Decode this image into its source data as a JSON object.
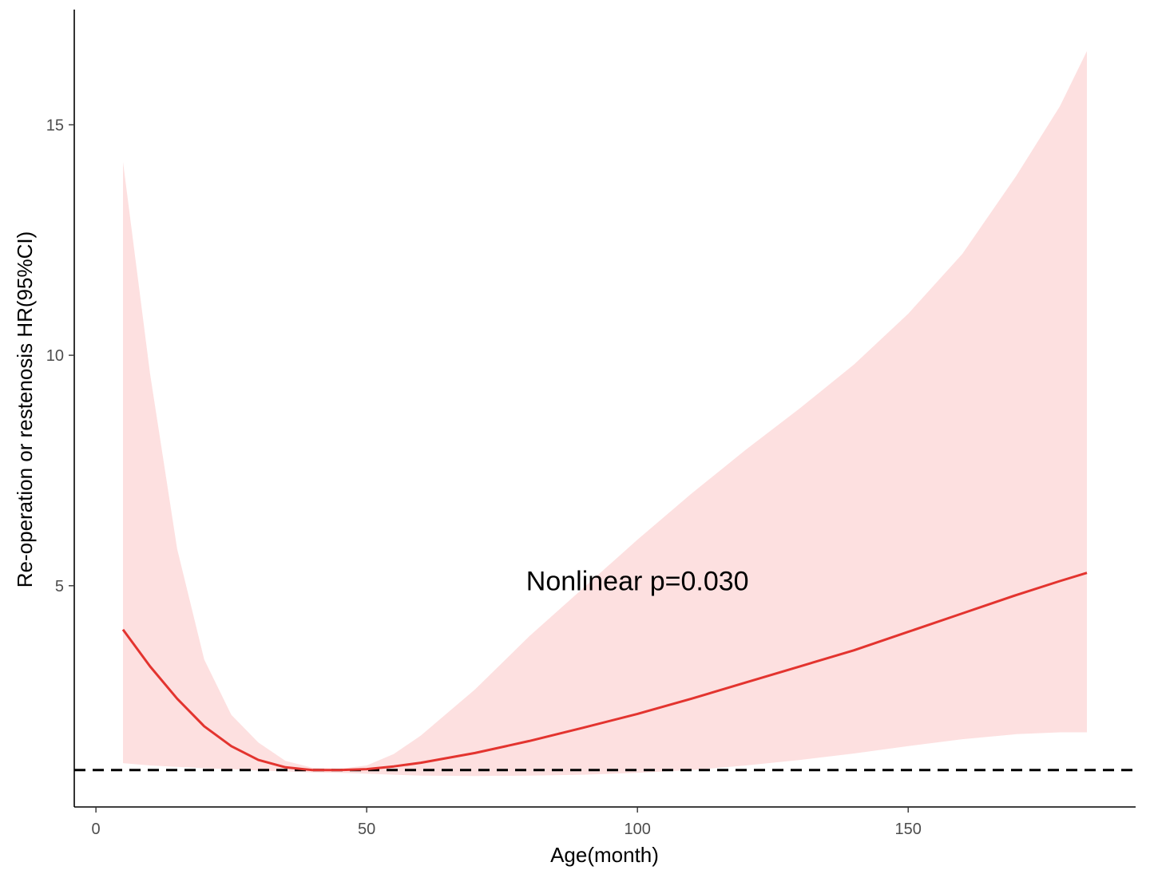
{
  "chart_data": {
    "type": "line",
    "title": "",
    "xlabel": "Age(month)",
    "ylabel": "Re-operation or restenosis HR(95%CI)",
    "xlim": [
      -4,
      192
    ],
    "ylim": [
      0.2,
      17.5
    ],
    "x_ticks": [
      0,
      50,
      100,
      150
    ],
    "x_tick_labels": [
      "0",
      "50",
      "100",
      "150"
    ],
    "y_ticks": [
      5,
      10,
      15
    ],
    "y_tick_labels": [
      "5",
      "10",
      "15"
    ],
    "reference_line": {
      "y": 1,
      "style": "dashed",
      "color": "#000000"
    },
    "annotation": {
      "text": "Nonlinear p=0.030",
      "x": 100,
      "y": 4.9
    },
    "grid": false,
    "series": [
      {
        "color": "#e3342f",
        "band_color": "#fde0e0",
        "x": [
          5,
          10,
          15,
          20,
          25,
          30,
          35,
          40,
          45,
          50,
          55,
          60,
          70,
          80,
          90,
          100,
          110,
          120,
          130,
          140,
          150,
          160,
          170,
          178,
          183
        ],
        "y": [
          4.05,
          3.25,
          2.55,
          1.95,
          1.52,
          1.22,
          1.06,
          1.0,
          1.0,
          1.02,
          1.08,
          1.16,
          1.37,
          1.63,
          1.92,
          2.22,
          2.55,
          2.9,
          3.25,
          3.6,
          4.0,
          4.4,
          4.8,
          5.1,
          5.28
        ],
        "upper": [
          14.2,
          9.6,
          5.8,
          3.4,
          2.2,
          1.6,
          1.2,
          1.05,
          1.03,
          1.1,
          1.35,
          1.75,
          2.75,
          3.9,
          4.95,
          6.0,
          7.0,
          7.95,
          8.85,
          9.8,
          10.9,
          12.2,
          13.9,
          15.4,
          16.6
        ],
        "lower": [
          1.15,
          1.1,
          1.07,
          1.04,
          1.02,
          0.99,
          0.97,
          0.95,
          0.94,
          0.92,
          0.9,
          0.88,
          0.87,
          0.88,
          0.9,
          0.94,
          1.0,
          1.1,
          1.22,
          1.36,
          1.52,
          1.67,
          1.78,
          1.82,
          1.82
        ]
      }
    ]
  }
}
